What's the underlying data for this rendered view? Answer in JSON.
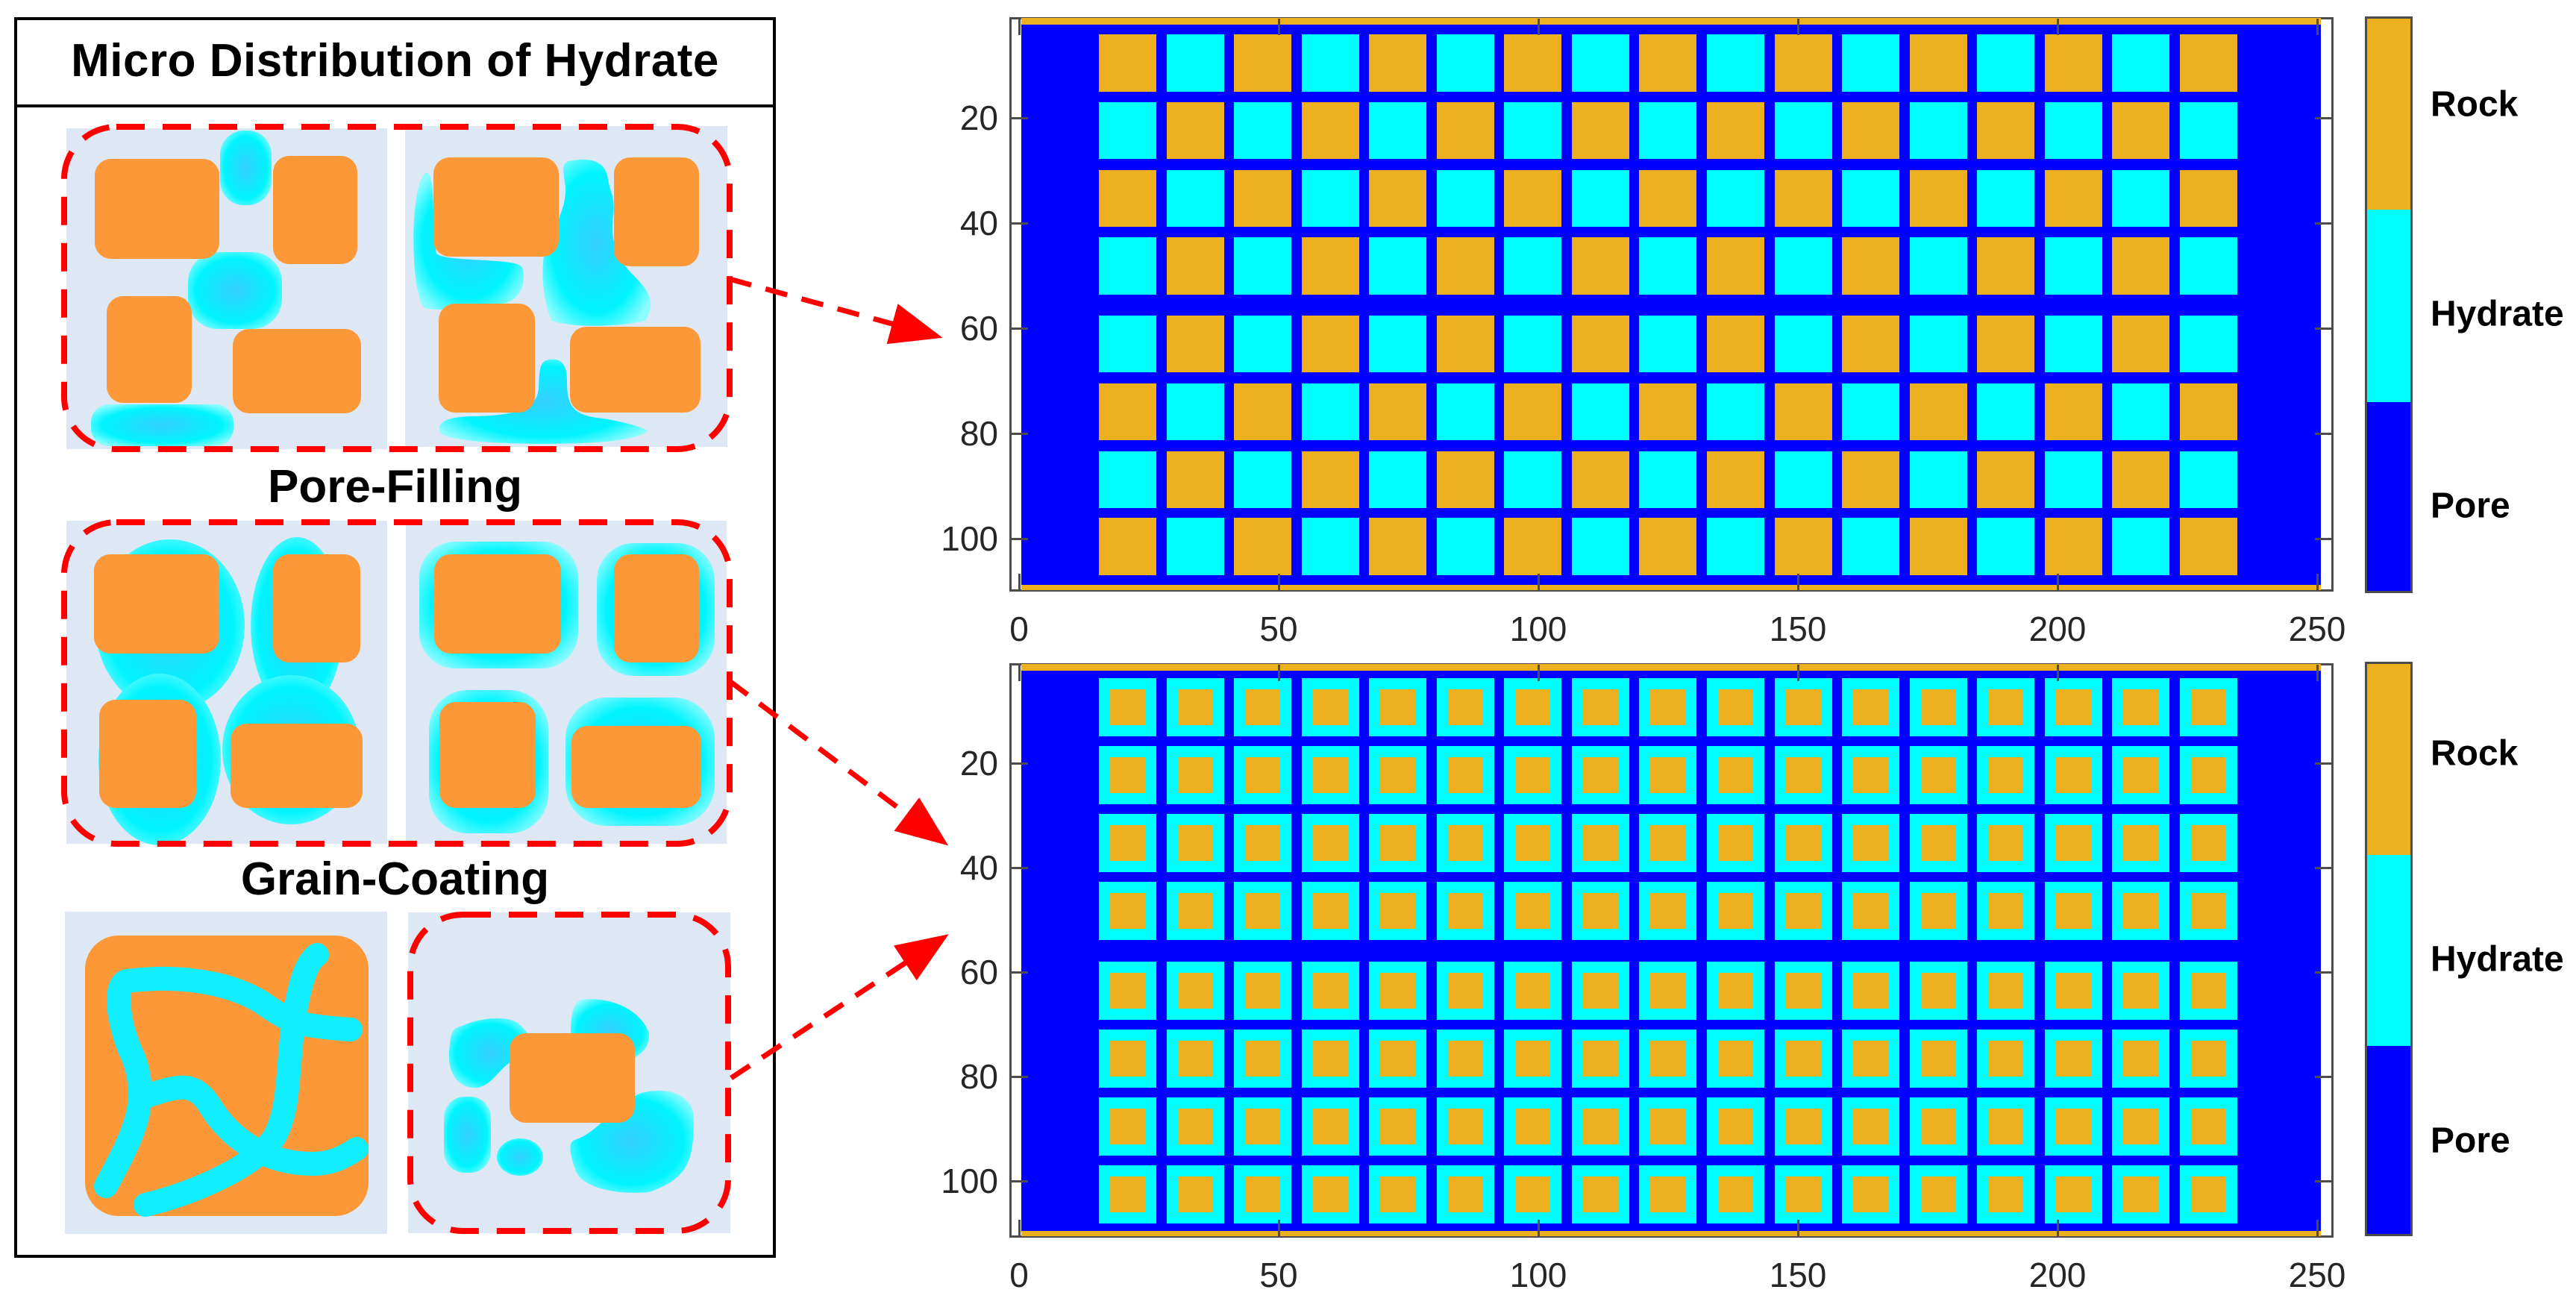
{
  "left_panel": {
    "title": "Micro Distribution of Hydrate",
    "section_labels": [
      "Pore-Filling",
      "Grain-Coating"
    ],
    "colors": {
      "background_panel": "#dde8f4",
      "rock": "#fd9838",
      "hydrate": "#00f8ff",
      "hydrate_center": "#35d0ff",
      "dashed_outline": "#ff0000",
      "frame": "#000000"
    }
  },
  "chart_data": [
    {
      "type": "heatmap",
      "title": "",
      "description": "Pore-filling hydrate distribution model (checkerboard of rock and hydrate grains in pore space)",
      "xlabel": "",
      "ylabel": "",
      "xlim": [
        0,
        250
      ],
      "ylim": [
        0,
        110
      ],
      "y_reversed": true,
      "xticks": [
        0,
        50,
        100,
        150,
        200,
        250
      ],
      "yticks": [
        20,
        40,
        60,
        80,
        100
      ],
      "grid": false,
      "categories": [
        "Pore",
        "Hydrate",
        "Rock"
      ],
      "colormap": {
        "Pore": "#0000ff",
        "Hydrate": "#00ffff",
        "Rock": "#edb120"
      },
      "grid_cols": 17,
      "grid_rows": 8,
      "grain_pattern": [
        [
          "R",
          "H",
          "R",
          "H",
          "R",
          "H",
          "R",
          "H",
          "R",
          "H",
          "R",
          "H",
          "R",
          "H",
          "R",
          "H",
          "R"
        ],
        [
          "H",
          "R",
          "H",
          "R",
          "H",
          "R",
          "H",
          "R",
          "H",
          "R",
          "H",
          "R",
          "H",
          "R",
          "H",
          "R",
          "H"
        ],
        [
          "R",
          "H",
          "R",
          "H",
          "R",
          "H",
          "R",
          "H",
          "R",
          "H",
          "R",
          "H",
          "R",
          "H",
          "R",
          "H",
          "R"
        ],
        [
          "H",
          "R",
          "H",
          "R",
          "H",
          "R",
          "H",
          "R",
          "H",
          "R",
          "H",
          "R",
          "H",
          "R",
          "H",
          "R",
          "H"
        ],
        [
          "H",
          "R",
          "H",
          "R",
          "H",
          "R",
          "H",
          "R",
          "H",
          "R",
          "H",
          "R",
          "H",
          "R",
          "H",
          "R",
          "H"
        ],
        [
          "R",
          "H",
          "R",
          "H",
          "R",
          "H",
          "R",
          "H",
          "R",
          "H",
          "R",
          "H",
          "R",
          "H",
          "R",
          "H",
          "R"
        ],
        [
          "H",
          "R",
          "H",
          "R",
          "H",
          "R",
          "H",
          "R",
          "H",
          "R",
          "H",
          "R",
          "H",
          "R",
          "H",
          "R",
          "H"
        ],
        [
          "R",
          "H",
          "R",
          "H",
          "R",
          "H",
          "R",
          "H",
          "R",
          "H",
          "R",
          "H",
          "R",
          "H",
          "R",
          "H",
          "R"
        ]
      ],
      "grain_x_start": 15,
      "grain_size": 11,
      "grain_pitch": 13,
      "row_y_ranges": [
        [
          4,
          15
        ],
        [
          17,
          28
        ],
        [
          30,
          41
        ],
        [
          42,
          53
        ],
        [
          57,
          68
        ],
        [
          70,
          81
        ],
        [
          83,
          94
        ],
        [
          95,
          106
        ]
      ],
      "boundary_strips": "Rock rows at y≈0 and y≈110",
      "colorbar": {
        "labels": [
          "Rock",
          "Hydrate",
          "Pore"
        ]
      }
    },
    {
      "type": "heatmap",
      "title": "",
      "description": "Grain-coating hydrate distribution model (each rock grain coated by hydrate layer)",
      "xlabel": "",
      "ylabel": "",
      "xlim": [
        0,
        250
      ],
      "ylim": [
        0,
        110
      ],
      "y_reversed": true,
      "xticks": [
        0,
        50,
        100,
        150,
        200,
        250
      ],
      "yticks": [
        20,
        40,
        60,
        80,
        100
      ],
      "grid": false,
      "categories": [
        "Pore",
        "Hydrate",
        "Rock"
      ],
      "colormap": {
        "Pore": "#0000ff",
        "Hydrate": "#00ffff",
        "Rock": "#edb120"
      },
      "grid_cols": 17,
      "grid_rows": 8,
      "grain_pattern": "all grains: Rock core (~7x7) coated with Hydrate shell (~11x11)",
      "grain_x_start": 15,
      "grain_size": 11,
      "core_size": 7,
      "grain_pitch": 13,
      "row_y_ranges": [
        [
          3,
          14
        ],
        [
          16,
          27
        ],
        [
          28,
          39
        ],
        [
          40,
          51
        ],
        [
          54,
          65
        ],
        [
          66,
          77
        ],
        [
          78,
          89
        ],
        [
          90,
          101
        ]
      ],
      "boundary_strips": "Rock rows at y≈0 and y≈110",
      "colorbar": {
        "labels": [
          "Rock",
          "Hydrate",
          "Pore"
        ]
      }
    }
  ],
  "plots": {
    "top": {
      "ytick_labels": [
        "20",
        "40",
        "60",
        "80",
        "100"
      ],
      "xtick_labels": [
        "0",
        "50",
        "100",
        "150",
        "200",
        "250"
      ],
      "colorbar_labels": [
        "Rock",
        "Hydrate",
        "Pore"
      ]
    },
    "bottom": {
      "ytick_labels": [
        "20",
        "40",
        "60",
        "80",
        "100"
      ],
      "xtick_labels": [
        "0",
        "50",
        "100",
        "150",
        "200",
        "250"
      ],
      "colorbar_labels": [
        "Rock",
        "Hydrate",
        "Pore"
      ]
    }
  }
}
